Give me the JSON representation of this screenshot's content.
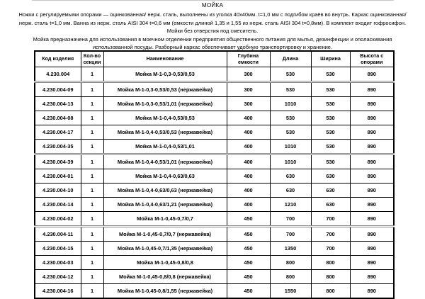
{
  "page": {
    "title": "МОЙКА",
    "description_1": "Ножки с регулируемыми опорами — оцинкованная/ нерж. сталь, выполнены из уголка 40х40мм. t=1,0 мм с подгибом краёв во внутрь. Каркас оцинкованная/ нерж. сталь t=1,0 мм. Ванна из нерж. сталь AISI 304 t=0,6 мм (емкости длиной 1,35 и 1,55 из нерж. сталь AISI 304 t=0,8мм). В комплект входит гофросифон. Мойки без отверстия под смеситель.",
    "description_2": "Мойка предназначена для использования в моечном отделении предприятия общественного питания для мытья, дезинфекции и ополаскивания использованной посуды. Разборный каркас обеспечивает удобную транспортировку и хранение."
  },
  "table": {
    "columns": [
      "Код изделия",
      "Кол-во секции",
      "Наименование",
      "Глубина емкости",
      "Длина",
      "Ширина",
      "Высота с опорами"
    ],
    "rows": [
      [
        "4.230.004",
        "1",
        "Мойка М-1-0,3-0,53/0,53",
        "300",
        "530",
        "530",
        "890"
      ],
      [
        "4.230.004-09",
        "1",
        "Мойка М-1-0,3-0,53/0,53 (нержавейка)",
        "300",
        "530",
        "530",
        "890"
      ],
      [
        "4.230.004-13",
        "1",
        "Мойка М-1-0,3-0,53/1,01 (нержавейка)",
        "300",
        "1010",
        "530",
        "890"
      ],
      [
        "4.230.004-08",
        "1",
        "Мойка М-1-0,4-0,53/0,53",
        "400",
        "530",
        "530",
        "890"
      ],
      [
        "4.230.004-17",
        "1",
        "Мойка М-1-0,4-0,53/0,53 (нержавейка)",
        "400",
        "530",
        "530",
        "890"
      ],
      [
        "4.230.004-35",
        "1",
        "Мойка М-1-0,4-0,53/1,01",
        "400",
        "1010",
        "530",
        "890"
      ],
      [
        "4.230.004-39",
        "1",
        "Мойка М-1-0,4-0,53/1,01 (нержавейка)",
        "400",
        "1010",
        "530",
        "890"
      ],
      [
        "4.230.004-01",
        "1",
        "Мойка М-1-0,4-0,63/0,63",
        "400",
        "630",
        "630",
        "890"
      ],
      [
        "4.230.004-10",
        "1",
        "Мойка М-1-0,4-0,63/0,63 (нержавейка)",
        "400",
        "630",
        "630",
        "890"
      ],
      [
        "4.230.004-14",
        "1",
        "Мойка М-1-0,4-0,63/1,21 (нержавейка)",
        "400",
        "1210",
        "630",
        "890"
      ],
      [
        "4.230.004-02",
        "1",
        "Мойка М-1-0,45-0,7/0,7",
        "450",
        "700",
        "700",
        "890"
      ],
      [
        "4.230.004-11",
        "1",
        "Мойка М-1-0,45-0,7/0,7 (нержавейка)",
        "450",
        "700",
        "700",
        "890"
      ],
      [
        "4.230.004-15",
        "1",
        "Мойка М-1-0,45-0,7/1,35 (нержавейка)",
        "450",
        "1350",
        "700",
        "890"
      ],
      [
        "4.230.004-03",
        "1",
        "Мойка М-1-0,45-0,8/0,8",
        "450",
        "800",
        "800",
        "890"
      ],
      [
        "4.230.004-12",
        "1",
        "Мойка М-1-0,45-0,8/0,8 (нержавейка)",
        "450",
        "800",
        "800",
        "890"
      ],
      [
        "4.230.004-16",
        "1",
        "Мойка М-1-0,45-0,8/1,55 (нержавейка)",
        "450",
        "1550",
        "800",
        "890"
      ]
    ]
  },
  "colors": {
    "background": "#ffffff",
    "text": "#000000",
    "table_border": "#000000",
    "group_divider": "#8a8a8a",
    "top_rule": "#c9c9c9"
  }
}
